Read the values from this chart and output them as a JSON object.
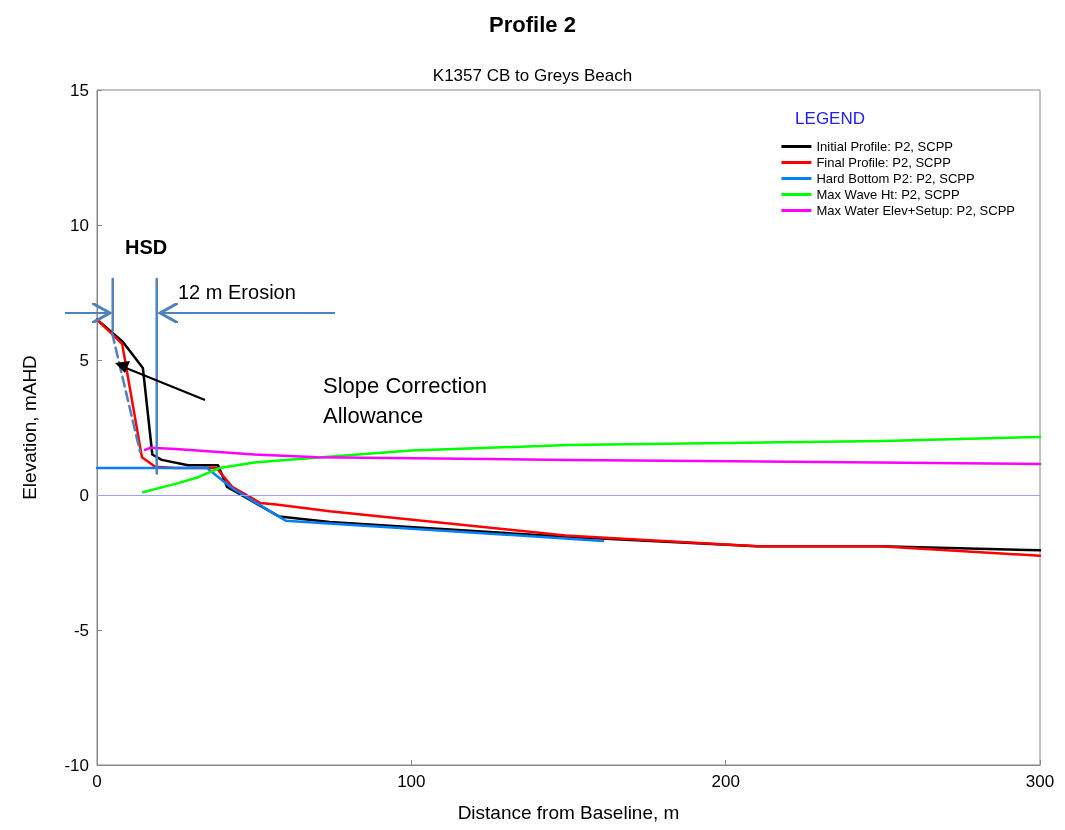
{
  "chart_data": {
    "type": "line",
    "title": "Profile 2",
    "subtitle": "K1357 CB to Greys Beach",
    "xlabel": "Distance from Baseline, m",
    "ylabel": "Elevation, mAHD",
    "legend_title": "LEGEND",
    "xlim": [
      0,
      300
    ],
    "xticks": [
      0,
      100,
      200,
      300
    ],
    "ylim": [
      -10,
      15
    ],
    "yticks": [
      -10,
      -5,
      0,
      5,
      10,
      15
    ],
    "grid": false,
    "legend": "top right",
    "marker": "none",
    "line_style": "solid",
    "ref_lines": [
      {
        "axis": "y",
        "value": 0,
        "label": null,
        "color": "#a0a0ff"
      }
    ],
    "annotations": [
      "HSD",
      "12 m Erosion",
      "Slope Correction\nAllowance"
    ],
    "series": [
      {
        "name": "Initial Profile: P2, SCPP",
        "color": "#000000",
        "x": [
          0,
          8,
          14.6,
          17.6,
          20.6,
          29,
          38.5,
          41.4,
          58,
          74,
          149,
          210,
          249,
          300
        ],
        "values": [
          6.5,
          5.7,
          4.7,
          1.5,
          1.3,
          1.1,
          1.1,
          0.3,
          -0.8,
          -1.0,
          -1.55,
          -1.9,
          -1.9,
          -2.05
        ]
      },
      {
        "name": "Final Profile: P2, SCPP",
        "color": "#ff0000",
        "x": [
          0,
          8,
          14.3,
          18.5,
          25,
          38,
          43,
          52,
          57,
          74,
          149,
          210,
          249,
          300
        ],
        "values": [
          6.5,
          5.6,
          1.4,
          1.05,
          1.0,
          1.0,
          0.3,
          -0.3,
          -0.35,
          -0.6,
          -1.5,
          -1.9,
          -1.9,
          -2.25
        ]
      },
      {
        "name": "Hard Bottom P2: P2, SCPP",
        "color": "#0080ff",
        "x": [
          0,
          35,
          43,
          60,
          161
        ],
        "values": [
          1.0,
          1.0,
          0.25,
          -0.95,
          -1.7
        ]
      },
      {
        "name": "Max Wave Ht: P2, SCPP",
        "color": "#00ff00",
        "x": [
          14.6,
          25.5,
          32,
          39,
          50,
          60,
          100,
          150,
          200,
          250,
          300
        ],
        "values": [
          0.1,
          0.43,
          0.65,
          1.0,
          1.2,
          1.3,
          1.65,
          1.85,
          1.93,
          2.0,
          2.15
        ]
      },
      {
        "name": "Max Water Elev+Setup: P2, SCPP",
        "color": "#ff00ff",
        "x": [
          15.3,
          17,
          25,
          50,
          70,
          150,
          300
        ],
        "values": [
          1.67,
          1.75,
          1.7,
          1.5,
          1.4,
          1.3,
          1.15
        ]
      },
      {
        "color": "#4f81bd",
        "line_style": "dashed",
        "x": [
          4.8,
          13.7
        ],
        "values": [
          6.0,
          1.6
        ]
      },
      {
        "color": "#4f81bd",
        "x": [
          5,
          5
        ],
        "values": [
          8.0,
          6.1
        ]
      },
      {
        "color": "#4f81bd",
        "x": [
          19,
          19
        ],
        "values": [
          8.0,
          0.8
        ]
      }
    ]
  }
}
